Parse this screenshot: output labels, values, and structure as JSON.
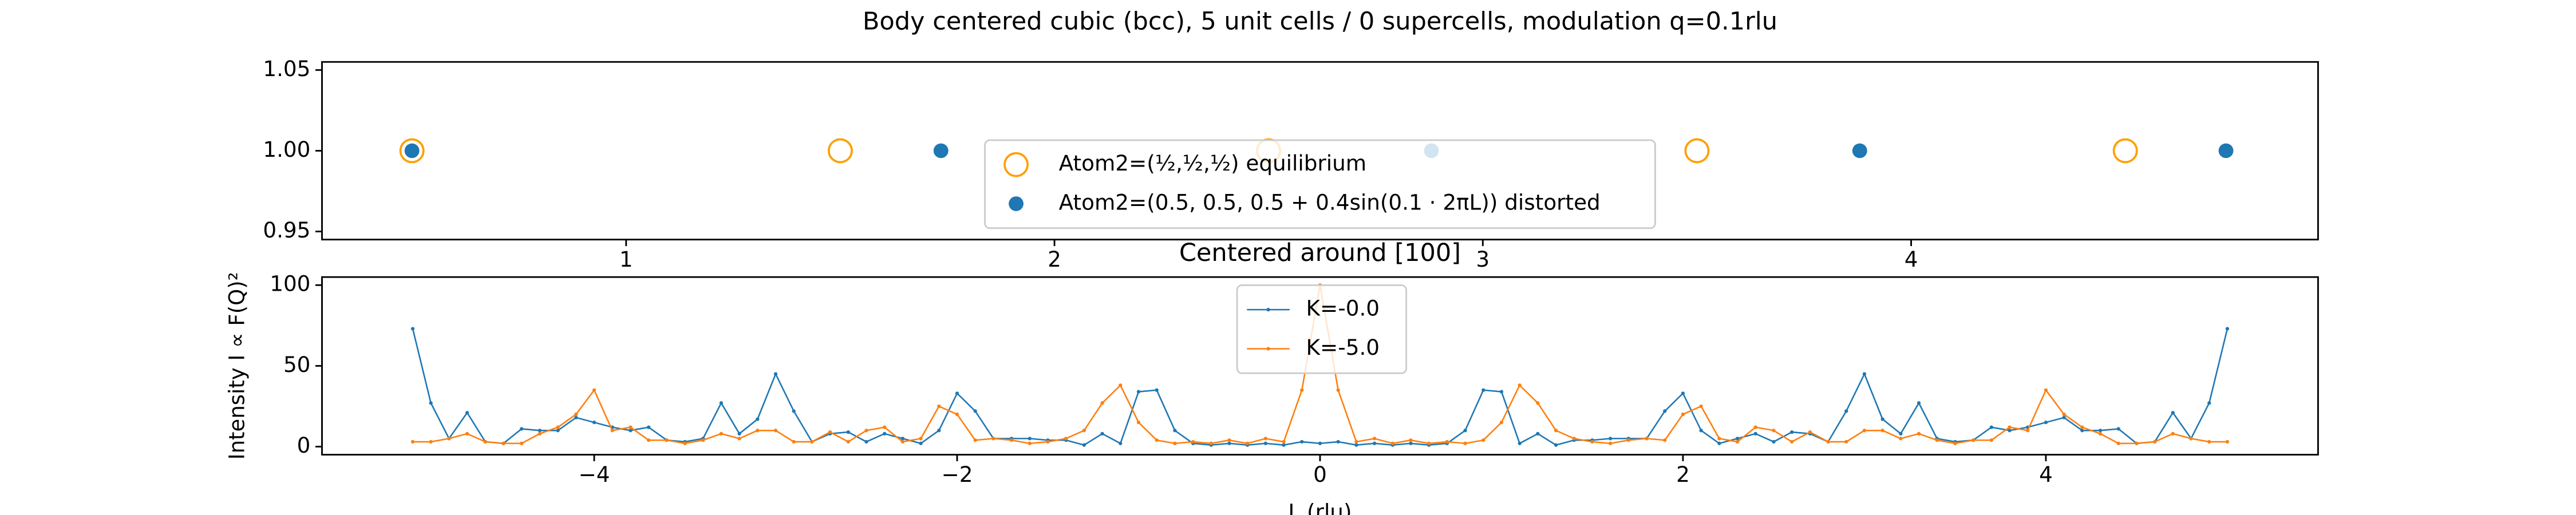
{
  "chart_data": [
    {
      "type": "scatter",
      "title": "Body centered cubic (bcc), 5 unit cells / 0 supercells, modulation q=0.1rlu",
      "xlim": [
        0.29,
        4.95
      ],
      "xticks": [
        1,
        2,
        3,
        4
      ],
      "ylim": [
        0.945,
        1.055
      ],
      "yticks": [
        {
          "value": 0.95,
          "label": "0.95"
        },
        {
          "value": 1.0,
          "label": "1.00"
        },
        {
          "value": 1.05,
          "label": "1.05"
        }
      ],
      "legend": "lower center",
      "series": [
        {
          "name": "Atom2=(½,½,½) equilibrium",
          "color": "#ff9f00",
          "marker": "open",
          "x": [
            0.5,
            1.5,
            2.5,
            3.5,
            4.5
          ],
          "values": [
            1,
            1,
            1,
            1,
            1
          ]
        },
        {
          "name": "Atom2=(0.5, 0.5, 0.5 + 0.4sin(0.1 · 2πL)) distorted",
          "color": "#1f77b4",
          "marker": "filled",
          "x": [
            0.5,
            1.735,
            2.88,
            3.88,
            4.735
          ],
          "values": [
            1,
            1,
            1,
            1,
            1
          ]
        }
      ]
    },
    {
      "type": "line",
      "title": "Centered around [100]",
      "xlabel": "L (rlu)",
      "ylabel": "Intensity I ∝ F(Q)²",
      "xlim": [
        -5.5,
        5.5
      ],
      "xticks": [
        {
          "value": -4,
          "label": "−4"
        },
        {
          "value": -2,
          "label": "−2"
        },
        0,
        2,
        4
      ],
      "ylim": [
        -5,
        105
      ],
      "yticks": [
        0,
        50,
        100
      ],
      "legend": "upper center",
      "x": [
        -5.0,
        -4.9,
        -4.8,
        -4.7,
        -4.6,
        -4.5,
        -4.4,
        -4.3,
        -4.2,
        -4.1,
        -4.0,
        -3.9,
        -3.8,
        -3.7,
        -3.6,
        -3.5,
        -3.4,
        -3.3,
        -3.2,
        -3.1,
        -3.0,
        -2.9,
        -2.8,
        -2.7,
        -2.6,
        -2.5,
        -2.4,
        -2.3,
        -2.2,
        -2.1,
        -2.0,
        -1.9,
        -1.8,
        -1.7,
        -1.6,
        -1.5,
        -1.4,
        -1.3,
        -1.2,
        -1.1,
        -1.0,
        -0.9,
        -0.8,
        -0.7,
        -0.6,
        -0.5,
        -0.4,
        -0.3,
        -0.2,
        -0.1,
        0,
        0.1,
        0.2,
        0.3,
        0.4,
        0.5,
        0.6,
        0.7,
        0.8,
        0.9,
        1.0,
        1.1,
        1.2,
        1.3,
        1.4,
        1.5,
        1.6,
        1.7,
        1.8,
        1.9,
        2.0,
        2.1,
        2.2,
        2.3,
        2.4,
        2.5,
        2.6,
        2.7,
        2.8,
        2.9,
        3.0,
        3.1,
        3.2,
        3.3,
        3.4,
        3.5,
        3.6,
        3.7,
        3.8,
        3.9,
        4.0,
        4.1,
        4.2,
        4.3,
        4.4,
        4.5,
        4.6,
        4.7,
        4.8,
        4.9,
        5.0
      ],
      "series": [
        {
          "name": "K=-0.0",
          "color": "#1f77b4",
          "values": [
            73,
            27,
            5,
            21,
            3,
            2,
            11,
            10,
            10,
            18,
            15,
            12,
            10,
            12,
            4,
            3,
            5,
            27,
            8,
            17,
            45,
            22,
            3,
            8,
            9,
            3,
            8,
            5,
            2,
            10,
            33,
            22,
            5,
            5,
            5,
            4,
            4,
            1,
            8,
            2,
            34,
            35,
            10,
            2,
            1,
            2,
            1,
            2,
            1,
            3,
            2,
            3,
            1,
            2,
            1,
            2,
            1,
            2,
            10,
            35,
            34,
            2,
            8,
            1,
            4,
            4,
            5,
            5,
            5,
            22,
            33,
            10,
            2,
            5,
            8,
            3,
            9,
            8,
            3,
            22,
            45,
            17,
            8,
            27,
            5,
            3,
            4,
            12,
            10,
            12,
            15,
            18,
            10,
            10,
            11,
            2,
            3,
            21,
            5,
            27,
            73
          ]
        },
        {
          "name": "K=-5.0",
          "color": "#ff7f0e",
          "values": [
            3,
            3,
            5,
            8,
            3,
            2,
            2,
            8,
            12,
            20,
            35,
            10,
            12,
            4,
            4,
            2,
            4,
            8,
            5,
            10,
            10,
            3,
            3,
            9,
            3,
            10,
            12,
            3,
            5,
            25,
            20,
            4,
            5,
            4,
            2,
            3,
            5,
            10,
            27,
            38,
            15,
            4,
            2,
            3,
            2,
            4,
            2,
            5,
            3,
            35,
            100,
            35,
            3,
            5,
            2,
            4,
            2,
            3,
            2,
            4,
            15,
            38,
            27,
            10,
            5,
            3,
            2,
            4,
            5,
            4,
            20,
            25,
            5,
            3,
            12,
            10,
            3,
            9,
            3,
            3,
            10,
            10,
            5,
            8,
            4,
            2,
            4,
            4,
            12,
            10,
            35,
            20,
            12,
            8,
            2,
            2,
            3,
            8,
            5,
            3,
            3
          ]
        }
      ]
    }
  ]
}
